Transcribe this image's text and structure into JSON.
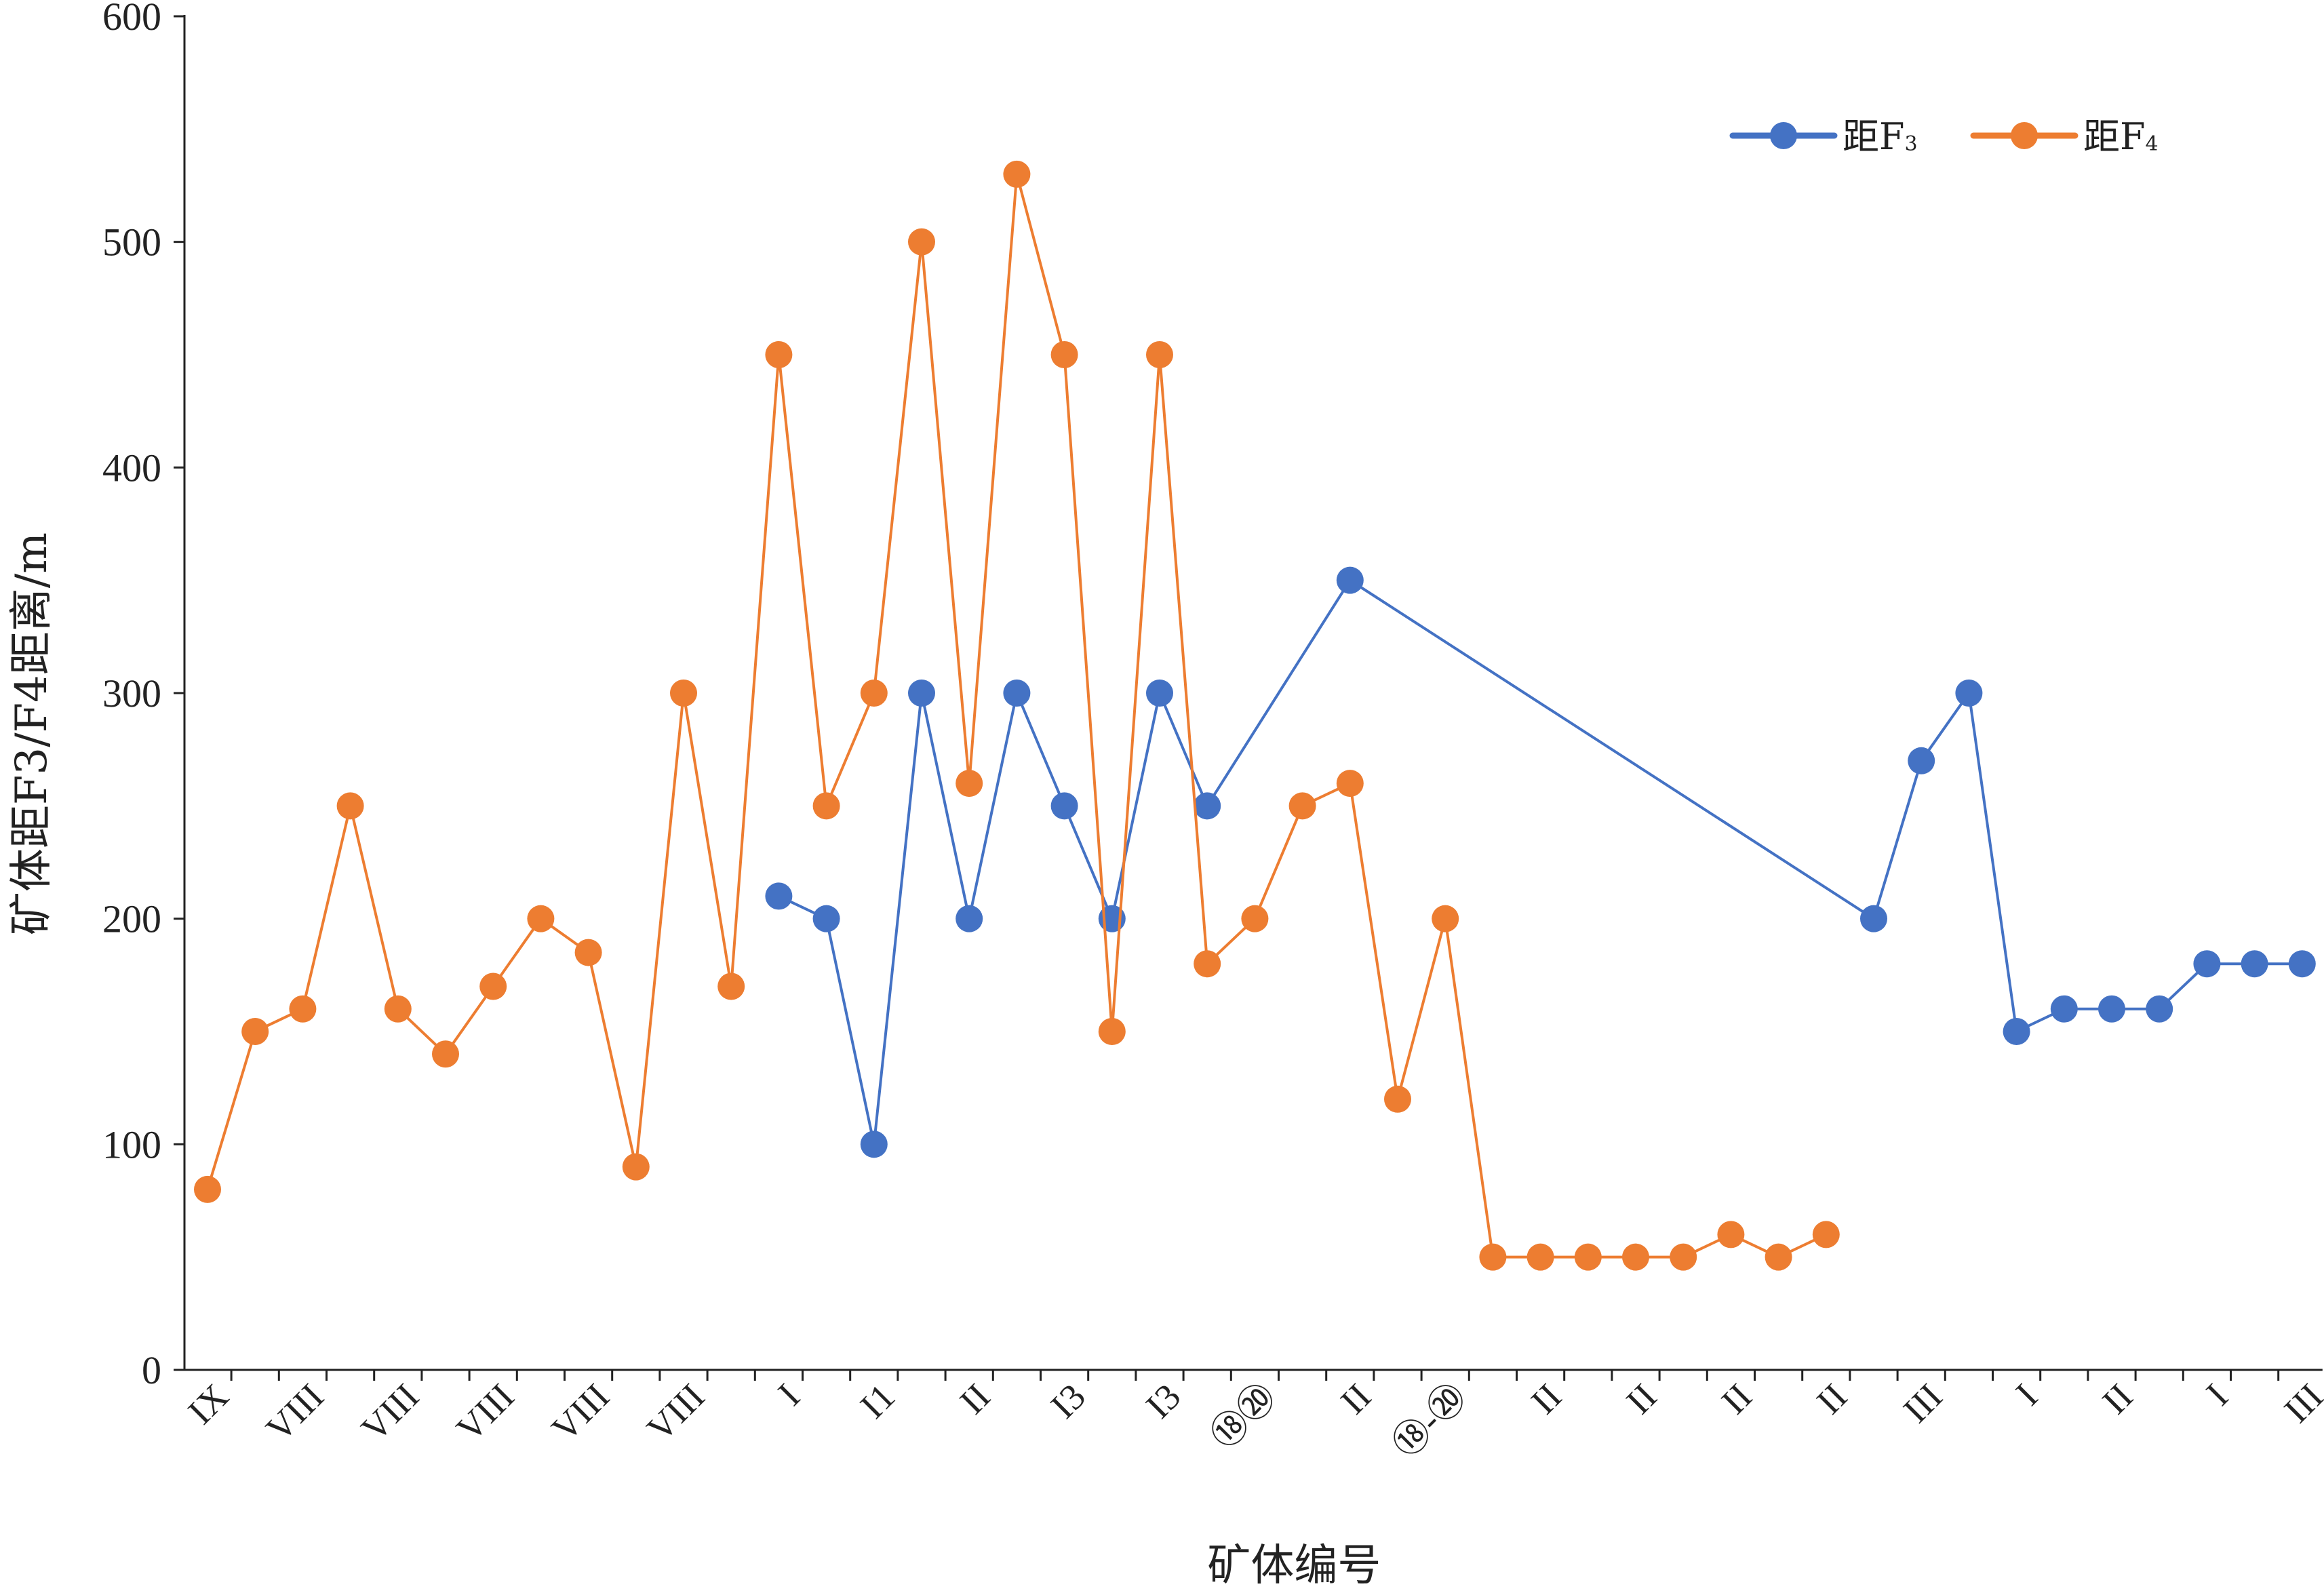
{
  "chart_data": {
    "type": "line",
    "xlabel": "矿体编号",
    "ylabel": "矿体距F3/F4距离/m",
    "ylim": [
      0,
      600
    ],
    "yticks": [
      0,
      100,
      200,
      300,
      400,
      500,
      600
    ],
    "grid": false,
    "legend_position": "top-right",
    "categories": [
      "IX",
      "",
      "VIII",
      "",
      "VIII",
      "",
      "VIII",
      "",
      "VIII",
      "",
      "VIII",
      "",
      "I",
      "",
      "I1",
      "",
      "II",
      "",
      "I3",
      "",
      "I3",
      "",
      "⑱⑳",
      "",
      "II",
      "",
      "⑱-⑳",
      "",
      "II",
      "",
      "II",
      "",
      "II",
      "",
      "II",
      "",
      "III",
      "",
      "I",
      "",
      "II",
      "",
      "I",
      "",
      "III"
    ],
    "series": [
      {
        "name": "距F3",
        "name_base": "距F",
        "name_sub": "3",
        "color": "#4472c4",
        "values": [
          null,
          null,
          null,
          null,
          null,
          null,
          null,
          null,
          null,
          null,
          null,
          null,
          210,
          200,
          100,
          300,
          200,
          300,
          250,
          200,
          300,
          250,
          null,
          null,
          350,
          null,
          null,
          null,
          null,
          null,
          null,
          null,
          null,
          null,
          null,
          200,
          270,
          300,
          150,
          160,
          160,
          160,
          180,
          180,
          180
        ]
      },
      {
        "name": "距F4",
        "name_base": "距F",
        "name_sub": "4",
        "color": "#ed7d31",
        "values": [
          80,
          150,
          160,
          250,
          160,
          140,
          170,
          200,
          185,
          90,
          300,
          170,
          450,
          250,
          300,
          500,
          260,
          530,
          450,
          150,
          450,
          180,
          200,
          250,
          260,
          120,
          200,
          50,
          50,
          50,
          50,
          50,
          60,
          50,
          60,
          null,
          null,
          null,
          null,
          null,
          null,
          null,
          null,
          null,
          null
        ]
      }
    ]
  }
}
